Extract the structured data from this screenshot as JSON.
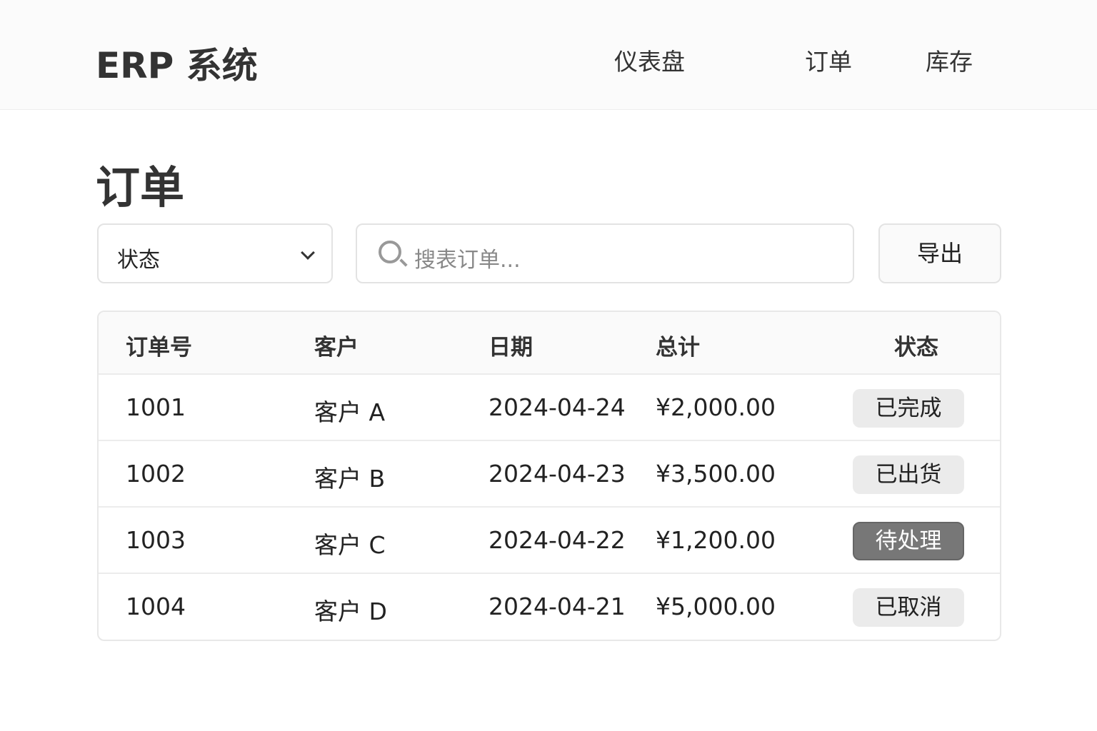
{
  "header": {
    "brand": "ERP 系统",
    "nav": [
      "仪表盘",
      "订单",
      "库存"
    ]
  },
  "page": {
    "title": "订单"
  },
  "toolbar": {
    "status_select": "状态",
    "search_placeholder": "搜表订单...",
    "export_label": "导出"
  },
  "table": {
    "columns": [
      "订单号",
      "客户",
      "日期",
      "总计",
      "状态"
    ],
    "rows": [
      {
        "id": "1001",
        "customer": "客户 A",
        "date": "2024-04-24",
        "total": "¥2,000.00",
        "status": "已完成",
        "status_style": "light"
      },
      {
        "id": "1002",
        "customer": "客户 B",
        "date": "2024-04-23",
        "total": "¥3,500.00",
        "status": "已出货",
        "status_style": "light"
      },
      {
        "id": "1003",
        "customer": "客户 C",
        "date": "2024-04-22",
        "total": "¥1,200.00",
        "status": "待处理",
        "status_style": "dark"
      },
      {
        "id": "1004",
        "customer": "客户 D",
        "date": "2024-04-21",
        "total": "¥5,000.00",
        "status": "已取消",
        "status_style": "light"
      }
    ]
  }
}
